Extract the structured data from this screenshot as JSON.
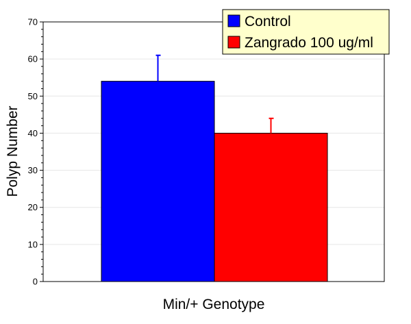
{
  "chart_data": {
    "type": "bar",
    "categories": [
      "Min/+ Genotype"
    ],
    "series": [
      {
        "name": "Control",
        "values": [
          54
        ],
        "error": [
          7
        ],
        "color": "#0000ff"
      },
      {
        "name": "Zangrado 100 ug/ml",
        "values": [
          40
        ],
        "error": [
          4
        ],
        "color": "#ff0000"
      }
    ],
    "xlabel": "Min/+ Genotype",
    "ylabel": "Polyp Number",
    "ylim": [
      0,
      70
    ],
    "yticks": [
      "0",
      "10",
      "20",
      "30",
      "40",
      "50",
      "60",
      "70"
    ],
    "grid": true,
    "legend_position": "top-right",
    "plot_background": "#ffffff",
    "legend_background": "#ffffcc",
    "gridline_color": "#e6e6e6"
  }
}
